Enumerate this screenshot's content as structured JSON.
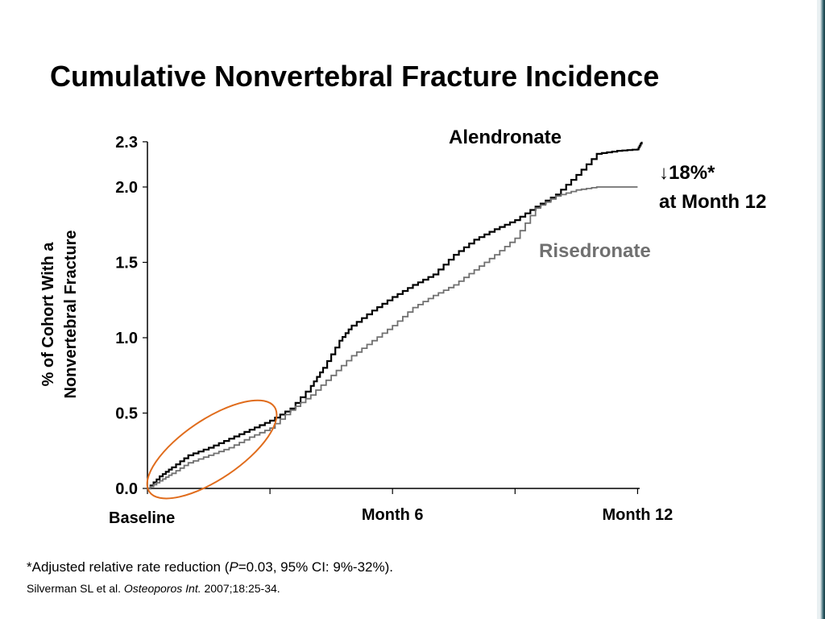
{
  "slide": {
    "title": "Cumulative Nonvertebral Fracture Incidence"
  },
  "annotation": {
    "arrow": "↓",
    "reduction": "18%*",
    "timepoint": "at Month 12"
  },
  "footnote": {
    "before": "*Adjusted relative rate reduction (",
    "p_symbol": "P",
    "after": "=0.03, 95% CI: 9%-32%)."
  },
  "citation": {
    "authors": "Silverman SL et al. ",
    "journal": "Osteoporos Int.",
    "details": " 2007;18:25-34."
  },
  "chart_data": {
    "type": "line",
    "title": "Cumulative Nonvertebral Fracture Incidence",
    "ylabel": "% of Cohort With a Nonvertebral Fracture",
    "ylabel_lines": [
      "% of Cohort With a",
      "Nonvertebral Fracture"
    ],
    "xlabel": "",
    "xlim": [
      0,
      12.5
    ],
    "ylim": [
      0,
      2.3
    ],
    "grid": false,
    "y_ticks": [
      0,
      0.5,
      1.0,
      1.5,
      2.0,
      2.3
    ],
    "y_tick_labels": [
      "0.0",
      "0.5",
      "1.0",
      "1.5",
      "2.0",
      "2.3"
    ],
    "x_ticks": [
      0,
      3,
      6,
      9,
      12
    ],
    "x_tick_labels": [
      {
        "x": 0,
        "label": "Baseline"
      },
      {
        "x": 6,
        "label": "Month 6"
      },
      {
        "x": 12,
        "label": "Month 12"
      }
    ],
    "series": [
      {
        "name": "Alendronate",
        "color": "#000000",
        "points": [
          [
            0.0,
            0.0
          ],
          [
            0.3,
            0.08
          ],
          [
            0.6,
            0.14
          ],
          [
            1.0,
            0.22
          ],
          [
            1.5,
            0.27
          ],
          [
            2.0,
            0.33
          ],
          [
            2.5,
            0.39
          ],
          [
            3.0,
            0.45
          ],
          [
            3.5,
            0.53
          ],
          [
            4.0,
            0.68
          ],
          [
            4.3,
            0.8
          ],
          [
            4.7,
            0.98
          ],
          [
            5.0,
            1.08
          ],
          [
            5.5,
            1.18
          ],
          [
            6.0,
            1.27
          ],
          [
            6.5,
            1.35
          ],
          [
            7.0,
            1.42
          ],
          [
            7.5,
            1.55
          ],
          [
            8.0,
            1.65
          ],
          [
            8.5,
            1.72
          ],
          [
            9.0,
            1.78
          ],
          [
            9.5,
            1.87
          ],
          [
            10.0,
            1.95
          ],
          [
            10.5,
            2.08
          ],
          [
            11.0,
            2.22
          ],
          [
            11.5,
            2.24
          ],
          [
            12.0,
            2.25
          ],
          [
            12.1,
            2.3
          ]
        ]
      },
      {
        "name": "Risedronate",
        "color": "#707070",
        "points": [
          [
            0.0,
            0.0
          ],
          [
            0.3,
            0.05
          ],
          [
            0.6,
            0.1
          ],
          [
            1.0,
            0.17
          ],
          [
            1.5,
            0.22
          ],
          [
            2.0,
            0.27
          ],
          [
            2.5,
            0.34
          ],
          [
            3.0,
            0.4
          ],
          [
            3.5,
            0.52
          ],
          [
            4.0,
            0.62
          ],
          [
            4.5,
            0.75
          ],
          [
            5.0,
            0.88
          ],
          [
            5.5,
            0.98
          ],
          [
            6.0,
            1.08
          ],
          [
            6.5,
            1.2
          ],
          [
            7.0,
            1.28
          ],
          [
            7.5,
            1.35
          ],
          [
            8.0,
            1.45
          ],
          [
            8.5,
            1.55
          ],
          [
            9.0,
            1.66
          ],
          [
            9.5,
            1.86
          ],
          [
            10.0,
            1.94
          ],
          [
            10.5,
            1.98
          ],
          [
            11.0,
            2.0
          ],
          [
            12.0,
            2.0
          ]
        ]
      }
    ],
    "highlight_ellipse": {
      "color": "#e06c1c",
      "x_range": [
        0,
        3
      ],
      "y_range": [
        0,
        0.55
      ]
    }
  }
}
